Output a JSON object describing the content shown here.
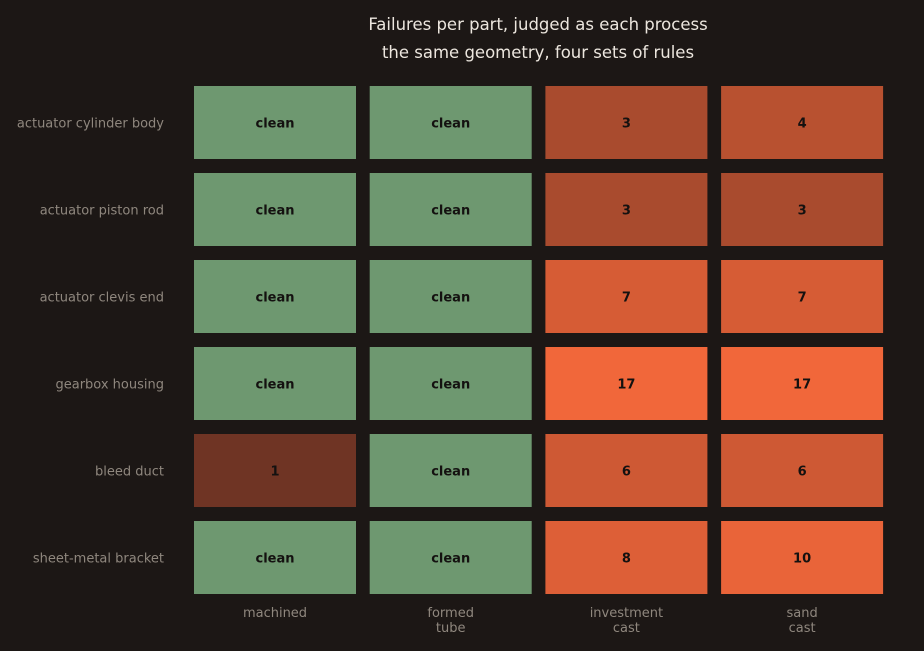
{
  "chart_data": {
    "type": "heatmap",
    "title": "Failures per part, judged as each process",
    "subtitle": "the same geometry, four sets of rules",
    "rows": [
      "actuator cylinder body",
      "actuator piston rod",
      "actuator clevis end",
      "gearbox housing",
      "bleed duct",
      "sheet-metal bracket"
    ],
    "columns": [
      [
        "machined"
      ],
      [
        "formed",
        "tube"
      ],
      [
        "investment",
        "cast"
      ],
      [
        "sand",
        "cast"
      ]
    ],
    "values": [
      [
        0,
        0,
        3,
        4
      ],
      [
        0,
        0,
        3,
        3
      ],
      [
        0,
        0,
        7,
        7
      ],
      [
        0,
        0,
        17,
        17
      ],
      [
        1,
        0,
        6,
        6
      ],
      [
        0,
        0,
        8,
        10
      ]
    ],
    "zero_label": "clean",
    "colors": {
      "background": "#1c1715",
      "clean": "#6e9870",
      "low": "#6f3424",
      "high": "#f1673a"
    }
  }
}
